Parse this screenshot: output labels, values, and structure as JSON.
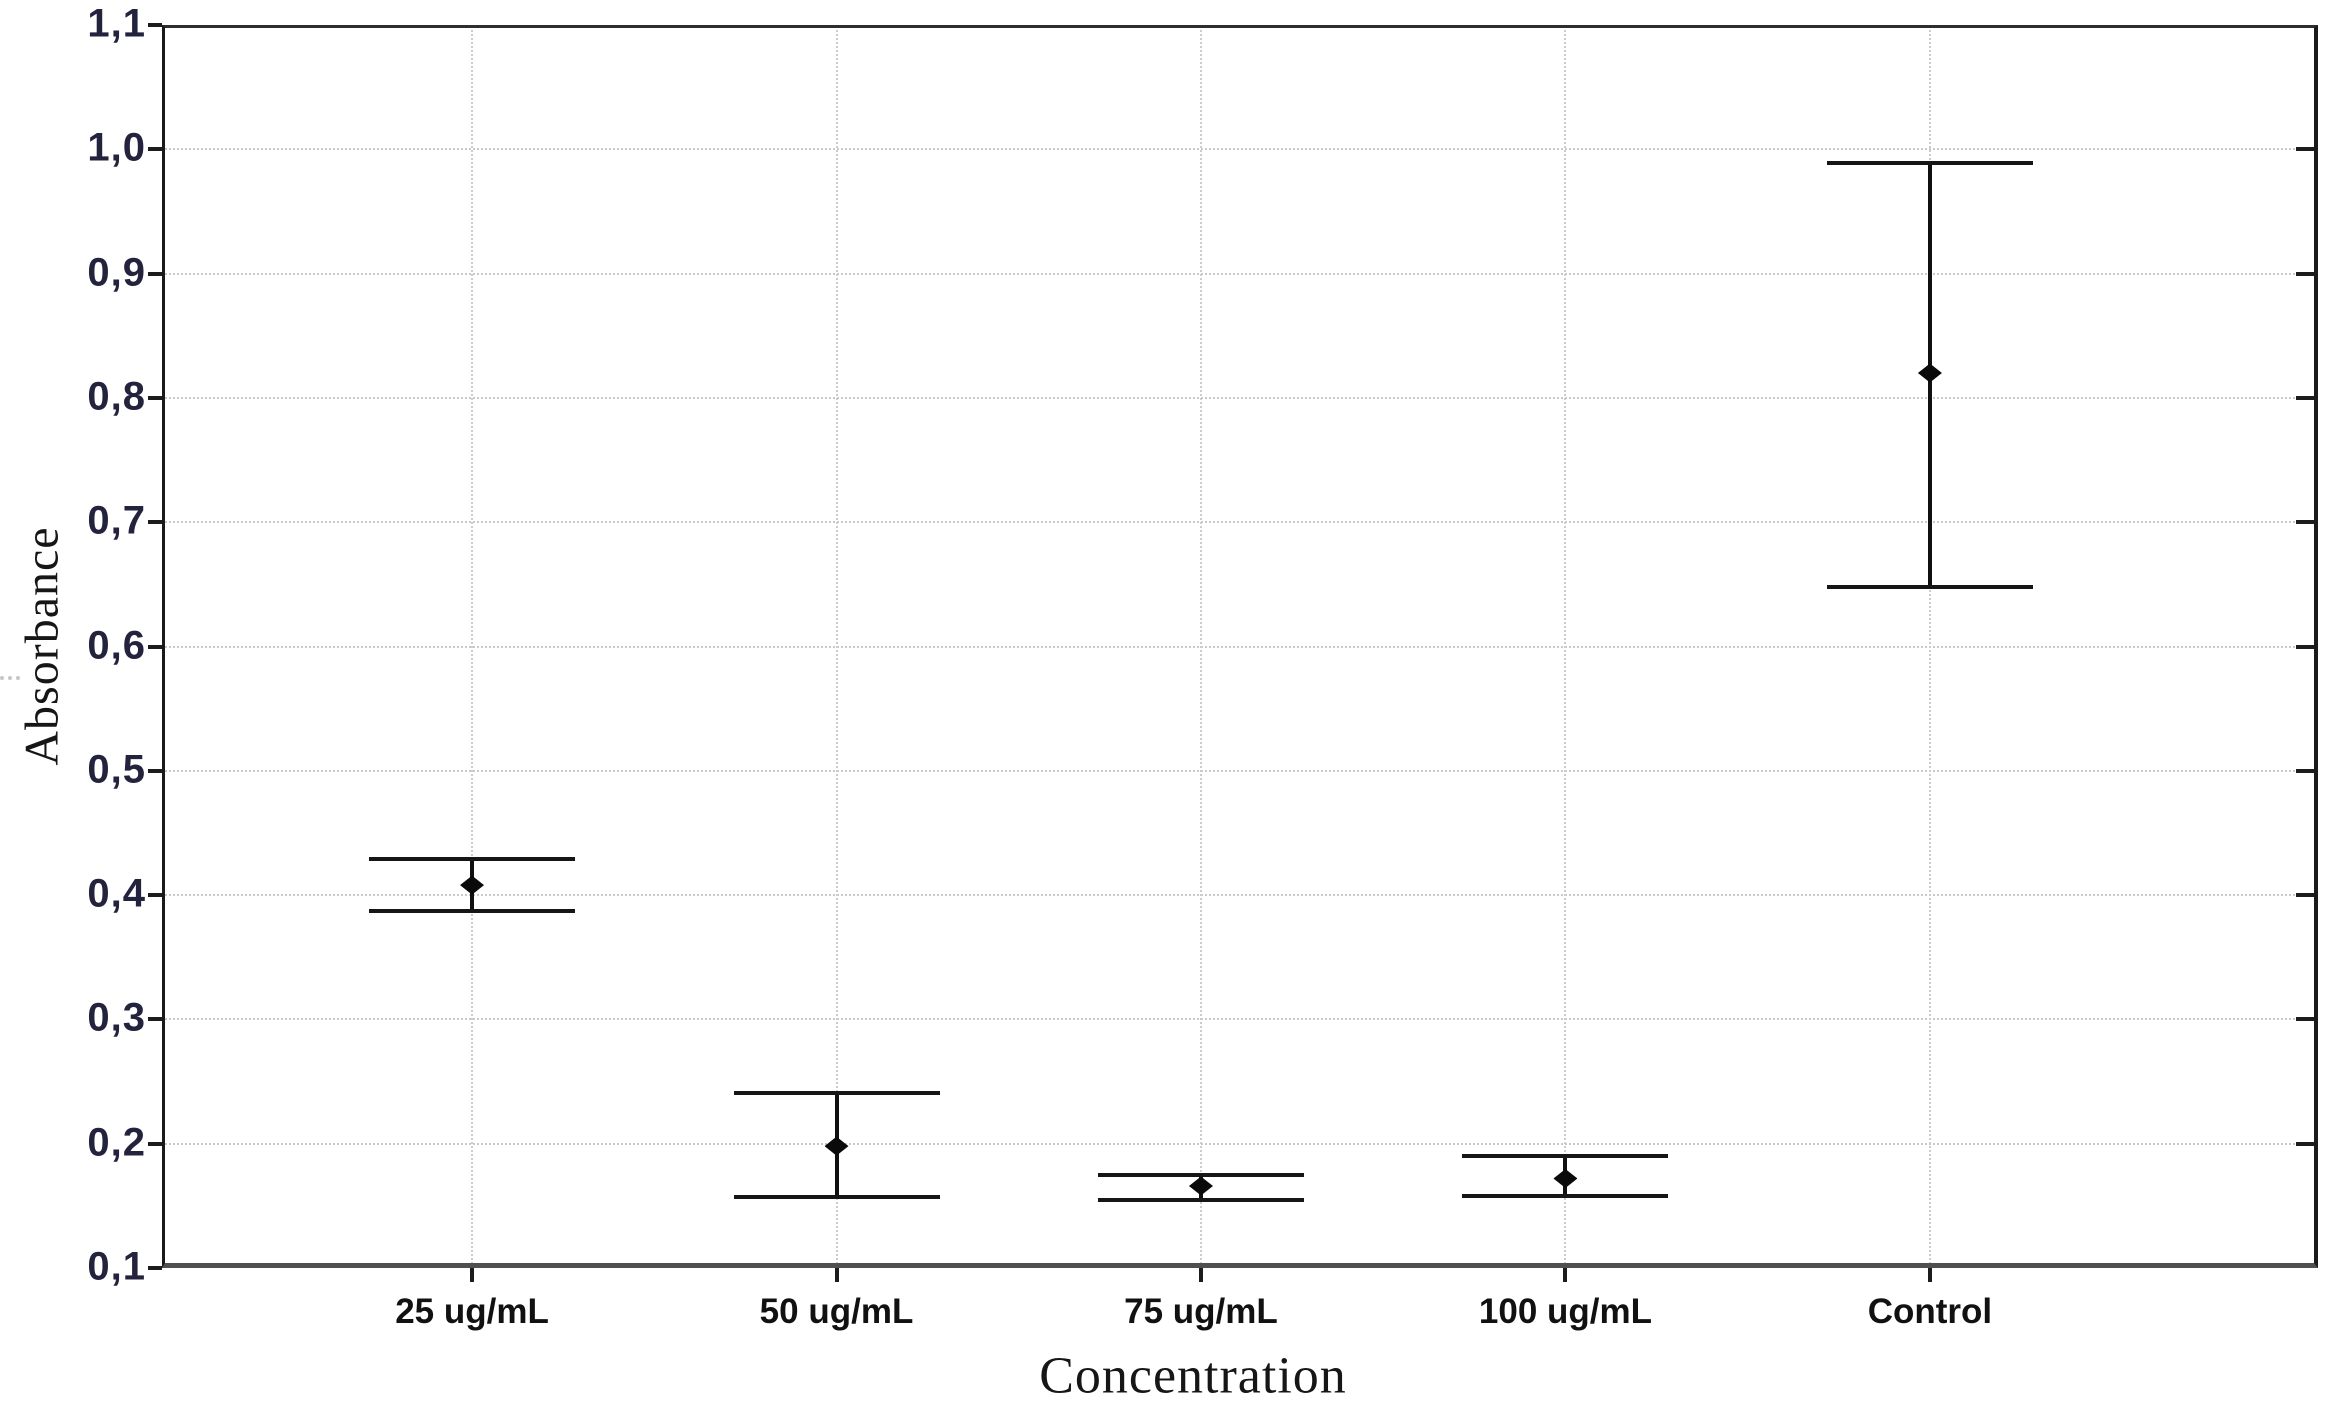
{
  "chart_data": {
    "type": "scatter",
    "variant": "mean-with-error-bars",
    "title": "",
    "xlabel": "Concentration",
    "ylabel": "Absorbance",
    "categories": [
      "25 ug/mL",
      "50 ug/mL",
      "75 ug/mL",
      "100 ug/mL",
      "Control"
    ],
    "series": [
      {
        "name": "mean",
        "values": [
          0.408,
          0.198,
          0.166,
          0.172,
          0.82
        ]
      },
      {
        "name": "upper_whisker",
        "values": [
          0.429,
          0.241,
          0.175,
          0.19,
          0.989
        ]
      },
      {
        "name": "lower_whisker",
        "values": [
          0.387,
          0.157,
          0.155,
          0.158,
          0.648
        ]
      }
    ],
    "ylim": [
      0.1,
      1.1
    ],
    "ytick_step": 0.1,
    "ytick_labels": [
      "1,1",
      "1,0",
      "0,9",
      "0,8",
      "0,7",
      "0,6",
      "0,5",
      "0,4",
      "0,3",
      "0,2",
      "0,1"
    ],
    "decimal_separator": ",",
    "grid": {
      "horizontal": "dotted",
      "vertical": "dotted"
    },
    "legend": "none",
    "marker": "filled-diamond",
    "colors": {
      "marker": "#0a0a0a",
      "whisker": "#161616",
      "gridline": "#c9c9c9",
      "ytick_label": "#23233d",
      "xtick_label": "#111111",
      "axis_title": "#161616",
      "plot_border": "#1a1a1a",
      "bottom_axis": "#4f4f4f",
      "background": "#ffffff"
    }
  }
}
